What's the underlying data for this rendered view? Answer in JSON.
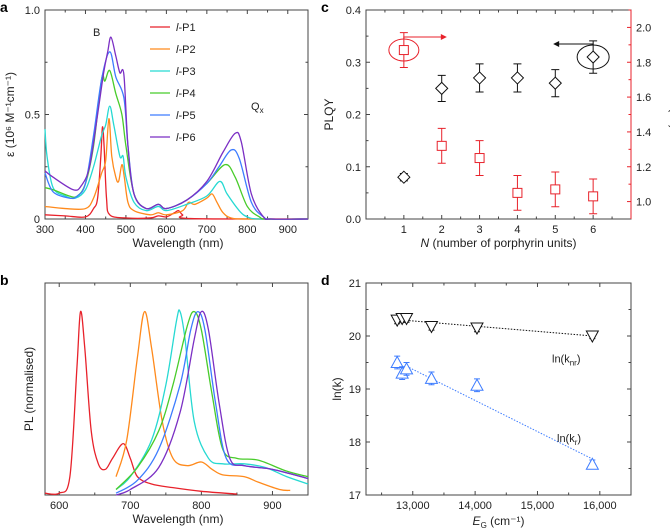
{
  "colors": {
    "P1": "#e8222b",
    "P2": "#ff8a1c",
    "P3": "#26d9d2",
    "P4": "#48cc2a",
    "P5": "#3d7cff",
    "P6": "#7b2fc4",
    "red": "#e8222b",
    "blue": "#3d7cff",
    "black": "#111111"
  },
  "chart_data": [
    {
      "panel": "a",
      "type": "line",
      "xlabel": "Wavelength (nm)",
      "ylabel": "ε (10⁶ M⁻¹cm⁻¹)",
      "xlim": [
        300,
        950
      ],
      "ylim": [
        0,
        1.0
      ],
      "xticks": [
        300,
        400,
        500,
        600,
        700,
        800,
        900
      ],
      "yticks": [
        0,
        0.5,
        1.0
      ],
      "ytick_labels": [
        "0",
        "0.5",
        "1.0"
      ],
      "annotations": [
        {
          "text": "B"
        },
        {
          "text": "Q",
          "sub": "x"
        }
      ],
      "legend": [
        "l-P1",
        "l-P2",
        "l-P3",
        "l-P4",
        "l-P5",
        "l-P6"
      ],
      "legend_prefix": "l",
      "legend_suffix": [
        "-P1",
        "-P2",
        "-P3",
        "-P4",
        "-P5",
        "-P6"
      ],
      "series": [
        {
          "name": "l-P1",
          "color_key": "P1",
          "x": [
            300,
            350,
            400,
            420,
            430,
            438,
            442,
            446,
            452,
            460,
            500,
            560,
            580,
            600,
            620,
            630,
            640,
            660,
            950
          ],
          "y": [
            0.02,
            0.015,
            0.01,
            0.05,
            0.1,
            0.3,
            0.44,
            0.35,
            0.1,
            0.02,
            0.005,
            0.005,
            0.015,
            0.01,
            0.03,
            0.04,
            0.02,
            0.002,
            0
          ]
        },
        {
          "name": "l-P2",
          "color_key": "P2",
          "x": [
            300,
            350,
            400,
            420,
            440,
            450,
            458,
            465,
            475,
            482,
            490,
            496,
            505,
            520,
            560,
            580,
            600,
            640,
            655,
            670,
            700,
            713,
            725,
            740,
            760,
            800,
            950
          ],
          "y": [
            0.06,
            0.05,
            0.05,
            0.1,
            0.22,
            0.28,
            0.48,
            0.3,
            0.2,
            0.18,
            0.26,
            0.2,
            0.08,
            0.04,
            0.02,
            0.03,
            0.02,
            0.04,
            0.08,
            0.07,
            0.1,
            0.12,
            0.08,
            0.03,
            0.005,
            0,
            0
          ]
        },
        {
          "name": "l-P3",
          "color_key": "P3",
          "x": [
            300,
            305,
            320,
            350,
            375,
            400,
            420,
            440,
            450,
            460,
            470,
            485,
            493,
            500,
            520,
            550,
            580,
            600,
            650,
            700,
            732,
            750,
            780,
            800,
            830,
            950
          ],
          "y": [
            0.43,
            0.3,
            0.15,
            0.11,
            0.1,
            0.14,
            0.25,
            0.4,
            0.45,
            0.54,
            0.45,
            0.3,
            0.3,
            0.2,
            0.08,
            0.04,
            0.06,
            0.04,
            0.07,
            0.11,
            0.18,
            0.12,
            0.04,
            0.01,
            0,
            0
          ]
        },
        {
          "name": "l-P4",
          "color_key": "P4",
          "x": [
            300,
            320,
            360,
            380,
            400,
            420,
            440,
            448,
            460,
            475,
            490,
            500,
            520,
            550,
            580,
            600,
            650,
            700,
            745,
            770,
            800,
            830,
            850,
            950
          ],
          "y": [
            0.15,
            0.14,
            0.11,
            0.11,
            0.17,
            0.35,
            0.67,
            0.66,
            0.71,
            0.6,
            0.5,
            0.35,
            0.12,
            0.05,
            0.07,
            0.05,
            0.09,
            0.17,
            0.26,
            0.2,
            0.06,
            0.01,
            0,
            0
          ]
        },
        {
          "name": "l-P5",
          "color_key": "P5",
          "x": [
            300,
            320,
            360,
            380,
            400,
            420,
            440,
            460,
            475,
            495,
            505,
            520,
            550,
            580,
            600,
            650,
            700,
            730,
            760,
            780,
            810,
            840,
            860,
            950
          ],
          "y": [
            0.22,
            0.13,
            0.1,
            0.11,
            0.17,
            0.4,
            0.67,
            0.8,
            0.68,
            0.58,
            0.35,
            0.12,
            0.05,
            0.07,
            0.05,
            0.09,
            0.17,
            0.25,
            0.33,
            0.29,
            0.08,
            0.01,
            0,
            0
          ]
        },
        {
          "name": "l-P6",
          "color_key": "P6",
          "x": [
            300,
            320,
            370,
            390,
            410,
            430,
            445,
            455,
            463,
            475,
            485,
            495,
            505,
            520,
            550,
            580,
            600,
            650,
            700,
            740,
            770,
            785,
            810,
            840,
            860,
            950
          ],
          "y": [
            0.23,
            0.2,
            0.14,
            0.16,
            0.25,
            0.5,
            0.7,
            0.8,
            0.87,
            0.78,
            0.7,
            0.69,
            0.35,
            0.12,
            0.05,
            0.07,
            0.05,
            0.09,
            0.18,
            0.32,
            0.41,
            0.37,
            0.12,
            0.01,
            0,
            0
          ]
        }
      ]
    },
    {
      "panel": "b",
      "type": "line",
      "xlabel": "Wavelength (nm)",
      "ylabel": "PL (normalised)",
      "xlim": [
        580,
        950
      ],
      "ylim": [
        0,
        1.156
      ],
      "xticks": [
        600,
        700,
        800,
        900
      ],
      "series": [
        {
          "name": "l-P1",
          "color_key": "P1",
          "x": [
            580,
            600,
            615,
            625,
            630,
            636,
            645,
            655,
            665,
            675,
            690,
            700,
            710,
            730,
            760,
            800,
            850
          ],
          "y": [
            0.01,
            0.01,
            0.1,
            0.7,
            1.0,
            0.8,
            0.35,
            0.17,
            0.14,
            0.2,
            0.28,
            0.2,
            0.1,
            0.06,
            0.04,
            0.02,
            0.005
          ]
        },
        {
          "name": "l-P2",
          "color_key": "P2",
          "x": [
            680,
            695,
            710,
            720,
            730,
            745,
            760,
            780,
            800,
            815,
            830,
            860,
            880,
            910,
            925
          ],
          "y": [
            0.1,
            0.3,
            0.75,
            1.0,
            0.8,
            0.4,
            0.2,
            0.16,
            0.18,
            0.14,
            0.11,
            0.1,
            0.07,
            0.03,
            0.025
          ]
        },
        {
          "name": "l-P3",
          "color_key": "P3",
          "x": [
            680,
            700,
            730,
            750,
            765,
            770,
            777,
            790,
            810,
            830,
            860,
            890,
            920,
            950
          ],
          "y": [
            0.03,
            0.1,
            0.3,
            0.6,
            0.95,
            1.0,
            0.85,
            0.4,
            0.2,
            0.17,
            0.17,
            0.15,
            0.1,
            0.06
          ]
        },
        {
          "name": "l-P4",
          "color_key": "P4",
          "x": [
            680,
            710,
            740,
            760,
            780,
            790,
            800,
            815,
            830,
            850,
            880,
            920,
            950
          ],
          "y": [
            0.03,
            0.15,
            0.35,
            0.6,
            0.92,
            1.0,
            0.9,
            0.55,
            0.25,
            0.2,
            0.19,
            0.13,
            0.1
          ]
        },
        {
          "name": "l-P5",
          "color_key": "P5",
          "x": [
            680,
            710,
            740,
            770,
            785,
            795,
            805,
            820,
            835,
            860,
            900,
            950
          ],
          "y": [
            0.01,
            0.08,
            0.25,
            0.6,
            0.9,
            1.0,
            0.9,
            0.5,
            0.2,
            0.16,
            0.14,
            0.09
          ]
        },
        {
          "name": "l-P6",
          "color_key": "P6",
          "x": [
            680,
            700,
            740,
            770,
            790,
            800,
            810,
            825,
            840,
            860,
            900,
            950
          ],
          "y": [
            0,
            0.03,
            0.15,
            0.45,
            0.85,
            1.0,
            0.9,
            0.5,
            0.2,
            0.16,
            0.14,
            0.09
          ]
        }
      ]
    },
    {
      "panel": "c",
      "type": "scatter",
      "xlabel_italic": "N",
      "xlabel": " (number of porphyrin units)",
      "ylabel": "PLQY",
      "ylabel_right": "τ (ns)",
      "xlim": [
        0,
        7
      ],
      "ylim": [
        0,
        0.4
      ],
      "ylim_right": [
        0.9,
        2.1
      ],
      "xticks": [
        1,
        2,
        3,
        4,
        5,
        6
      ],
      "yticks": [
        0,
        0.1,
        0.2,
        0.3,
        0.4
      ],
      "ytick_labels": [
        "0.0",
        "0.1",
        "0.2",
        "0.3",
        "0.4"
      ],
      "yticks_right": [
        1.0,
        1.2,
        1.4,
        1.6,
        1.8,
        2.0
      ],
      "ytick_labels_right": [
        "1.0",
        "1.2",
        "1.4",
        "1.6",
        "1.8",
        "2.0"
      ],
      "series": [
        {
          "name": "PLQY",
          "axis": "left",
          "marker": "diamond",
          "color_key": "black",
          "x": [
            1,
            2,
            3,
            4,
            5,
            6
          ],
          "y": [
            0.08,
            0.25,
            0.27,
            0.27,
            0.26,
            0.31
          ],
          "err": [
            0.007,
            0.025,
            0.027,
            0.027,
            0.026,
            0.031
          ]
        },
        {
          "name": "τ",
          "axis": "right",
          "marker": "square",
          "color_key": "red",
          "x": [
            1,
            2,
            3,
            4,
            5,
            6
          ],
          "y": [
            1.87,
            1.32,
            1.25,
            1.05,
            1.07,
            1.03
          ],
          "err": [
            0.1,
            0.1,
            0.1,
            0.1,
            0.1,
            0.1
          ]
        }
      ]
    },
    {
      "panel": "d",
      "type": "scatter",
      "xlabel": "E",
      "xlabel_sub": "G",
      "xlabel_unit": " (cm⁻¹)",
      "ylabel": "ln(k)",
      "xlim": [
        12250,
        16500
      ],
      "ylim": [
        17,
        21
      ],
      "xticks": [
        13000,
        14000,
        15000,
        16000
      ],
      "xtick_labels": [
        "13,000",
        "14,000",
        "15,000",
        "16,000"
      ],
      "yticks": [
        17,
        18,
        19,
        20,
        21
      ],
      "ytick_labels": [
        "17",
        "18",
        "19",
        "20",
        "21"
      ],
      "series": [
        {
          "name": "ln(knr)",
          "label": "ln(k",
          "label_sub": "nr",
          "label_end": ")",
          "marker": "triangle-down",
          "color_key": "black",
          "x": [
            12750,
            12830,
            12900,
            13300,
            14030,
            15880
          ],
          "y": [
            20.3,
            20.33,
            20.33,
            20.18,
            20.15,
            20.0
          ],
          "err": [
            0.07,
            0.07,
            0.07,
            0.07,
            0.07,
            0.05
          ],
          "fit": {
            "x": [
              12750,
              15880
            ],
            "y": [
              20.31,
              20.0
            ]
          }
        },
        {
          "name": "ln(kr)",
          "label": "ln(k",
          "label_sub": "r",
          "label_end": ")",
          "marker": "triangle-up",
          "color_key": "blue",
          "x": [
            12750,
            12830,
            12900,
            13300,
            14030,
            15880
          ],
          "y": [
            19.5,
            19.3,
            19.38,
            19.2,
            19.07,
            17.58
          ],
          "err": [
            0.12,
            0.12,
            0.12,
            0.12,
            0.12,
            0.08
          ],
          "fit": {
            "x": [
              12900,
              15880
            ],
            "y": [
              19.43,
              17.68
            ]
          }
        }
      ]
    }
  ]
}
